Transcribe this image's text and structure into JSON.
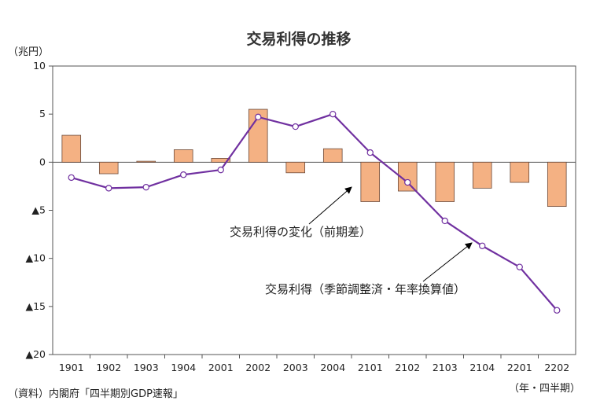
{
  "chart_data": {
    "type": "bar+line",
    "title": "交易利得の推移",
    "y_unit": "（兆円）",
    "x_unit": "（年・四半期）",
    "source": "（資料）内閣府「四半期別GDP速報」",
    "ylim": [
      -20,
      10
    ],
    "ytick_values": [
      10,
      5,
      0,
      -5,
      -10,
      -15,
      -20
    ],
    "ytick_labels": [
      "10",
      "5",
      "0",
      "▲5",
      "▲10",
      "▲15",
      "▲20"
    ],
    "categories": [
      "1901",
      "1902",
      "1903",
      "1904",
      "2001",
      "2002",
      "2003",
      "2004",
      "2101",
      "2102",
      "2103",
      "2104",
      "2201",
      "2202"
    ],
    "series": [
      {
        "name": "交易利得の変化（前期差）",
        "type": "bar",
        "color": "#f4b183",
        "values": [
          2.8,
          -1.2,
          0.1,
          1.3,
          0.4,
          5.5,
          -1.1,
          1.4,
          -4.1,
          -3.0,
          -4.1,
          -2.7,
          -2.1,
          -4.6
        ]
      },
      {
        "name": "交易利得（季節調整済・年率換算値）",
        "type": "line",
        "color": "#7030a0",
        "values": [
          -1.6,
          -2.7,
          -2.6,
          -1.3,
          -0.8,
          4.7,
          3.7,
          5.0,
          1.0,
          -2.1,
          -6.1,
          -8.7,
          -10.9,
          -15.4
        ]
      }
    ],
    "annotations": {
      "bar_label": "交易利得の変化（前期差）",
      "line_label": "交易利得（季節調整済・年率換算値）"
    },
    "grid": false
  }
}
